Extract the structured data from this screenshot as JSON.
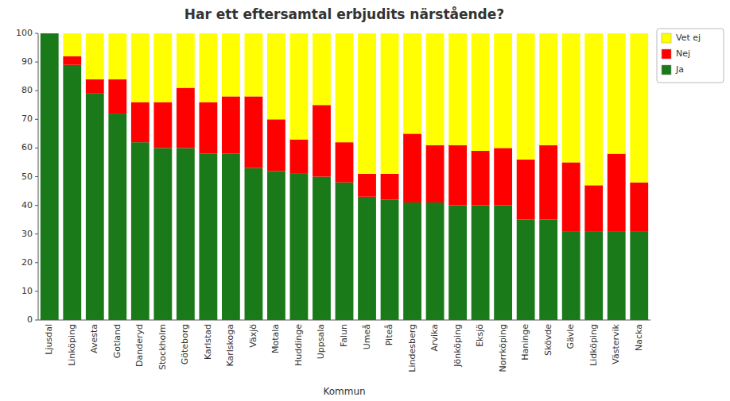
{
  "chart_data": {
    "type": "bar",
    "title": "Har ett eftersamtal erbjudits närstående?",
    "xlabel": "Kommun",
    "categories": [
      "Ljusdal",
      "Linköping",
      "Avesta",
      "Gotland",
      "Danderyd",
      "Stockholm",
      "Göteborg",
      "Karlstad",
      "Karlskoga",
      "Växjö",
      "Motala",
      "Huddinge",
      "Uppsala",
      "Falun",
      "Umeå",
      "Piteå",
      "Lindesberg",
      "Arvika",
      "Jönköping",
      "Eksjö",
      "Norrköping",
      "Haninge",
      "Skövde",
      "Gävle",
      "Lidköping",
      "Västervik",
      "Nacka"
    ],
    "series": [
      {
        "name": "Ja",
        "color": "#1a7a1a",
        "values": [
          100,
          89,
          79,
          72,
          62,
          60,
          60,
          58,
          58,
          53,
          52,
          51,
          50,
          48,
          43,
          42,
          41,
          41,
          40,
          40,
          40,
          35,
          35,
          31,
          31,
          31,
          31
        ]
      },
      {
        "name": "Nej",
        "color": "#ff0000",
        "values": [
          0,
          3,
          5,
          12,
          14,
          16,
          21,
          18,
          20,
          25,
          18,
          12,
          25,
          14,
          8,
          9,
          24,
          20,
          21,
          19,
          20,
          21,
          26,
          24,
          16,
          27,
          17
        ]
      },
      {
        "name": "Vet ej",
        "color": "#ffff00",
        "values": [
          0,
          8,
          16,
          16,
          24,
          24,
          19,
          24,
          22,
          22,
          30,
          37,
          25,
          38,
          49,
          49,
          35,
          39,
          39,
          41,
          40,
          44,
          39,
          45,
          53,
          42,
          52
        ]
      }
    ],
    "stacked": true,
    "ylim": [
      0,
      100
    ],
    "yticks": [
      0,
      10,
      20,
      30,
      40,
      50,
      60,
      70,
      80,
      90,
      100
    ],
    "grid": false,
    "legend": "upper right"
  }
}
